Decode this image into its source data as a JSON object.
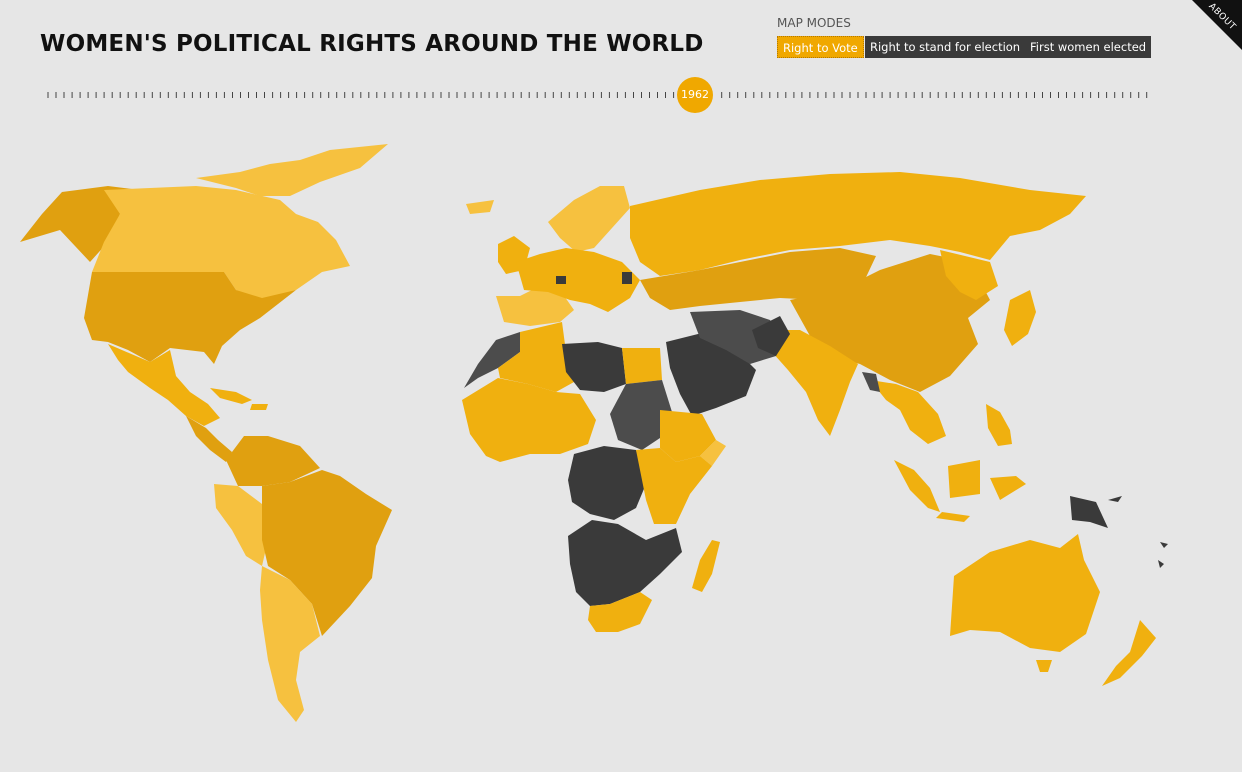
{
  "header": {
    "title": "WOMEN'S POLITICAL RIGHTS AROUND THE WORLD"
  },
  "map_modes": {
    "label": "MAP MODES",
    "options": [
      "Right to Vote",
      "Right to stand for election",
      "First women elected"
    ],
    "selected": "Right to Vote"
  },
  "about": {
    "label": "ABOUT"
  },
  "timeline": {
    "current_year": "1962"
  },
  "legend_colors": {
    "granted_early": "#f6c13f",
    "granted_mid": "#f0b00f",
    "granted": "#e0a010",
    "not_granted": "#3a3a3a",
    "not_granted_alt": "#4c4c4c",
    "background": "#e6e6e6",
    "accent": "#f0a800"
  },
  "map": {
    "regions": [
      {
        "name": "alaska",
        "status": "granted_early"
      },
      {
        "name": "canada",
        "status": "granted_early"
      },
      {
        "name": "usa",
        "status": "granted"
      },
      {
        "name": "mexico",
        "status": "granted_mid"
      },
      {
        "name": "central-america",
        "status": "granted"
      },
      {
        "name": "caribbean",
        "status": "granted_mid"
      },
      {
        "name": "greenland",
        "status": "granted_early"
      },
      {
        "name": "brazil",
        "status": "granted"
      },
      {
        "name": "peru",
        "status": "granted_early"
      },
      {
        "name": "argentina-chile",
        "status": "granted_early"
      },
      {
        "name": "europe",
        "status": "granted_mid"
      },
      {
        "name": "scandinavia",
        "status": "granted_early"
      },
      {
        "name": "russia",
        "status": "granted_mid"
      },
      {
        "name": "central-asia",
        "status": "granted"
      },
      {
        "name": "china",
        "status": "granted"
      },
      {
        "name": "india",
        "status": "granted_mid"
      },
      {
        "name": "southeast-asia",
        "status": "granted_mid"
      },
      {
        "name": "japan",
        "status": "granted_mid"
      },
      {
        "name": "indonesia",
        "status": "granted_mid"
      },
      {
        "name": "australia",
        "status": "granted_mid"
      },
      {
        "name": "new-zealand",
        "status": "granted_mid"
      },
      {
        "name": "north-africa",
        "status": "granted_mid"
      },
      {
        "name": "libya",
        "status": "not_granted"
      },
      {
        "name": "sudan",
        "status": "not_granted_alt"
      },
      {
        "name": "west-africa",
        "status": "granted_mid"
      },
      {
        "name": "central-africa",
        "status": "not_granted"
      },
      {
        "name": "east-africa",
        "status": "granted_mid"
      },
      {
        "name": "southern-africa",
        "status": "granted_mid"
      },
      {
        "name": "madagascar",
        "status": "granted_mid"
      },
      {
        "name": "saudi-arabia",
        "status": "not_granted"
      },
      {
        "name": "iran",
        "status": "not_granted_alt"
      },
      {
        "name": "papua-new-guinea",
        "status": "not_granted"
      },
      {
        "name": "pacific-islands",
        "status": "not_granted"
      }
    ]
  }
}
